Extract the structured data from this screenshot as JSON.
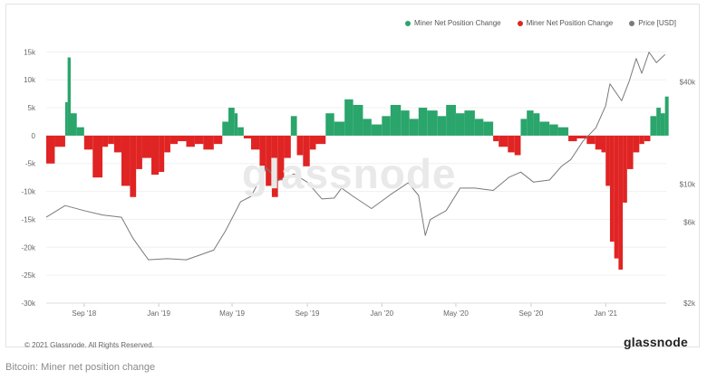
{
  "chart_data": {
    "type": "bar",
    "legend": [
      {
        "label": "Miner Net Position Change",
        "color": "#2aa56b"
      },
      {
        "label": "Miner Net Position Change",
        "color": "#e02424"
      },
      {
        "label": "Price [USD]",
        "color": "#7a7a7a"
      }
    ],
    "legend_placement": "top-right",
    "watermark": "glassnode",
    "x_ticks": [
      "Sep '18",
      "Jan '19",
      "May '19",
      "Sep '19",
      "Jan '20",
      "May '20",
      "Sep '20",
      "Jan '21"
    ],
    "y_left_ticks": [
      "15k",
      "10k",
      "5k",
      "0",
      "-5k",
      "-10k",
      "-15k",
      "-20k",
      "-25k",
      "-30k"
    ],
    "y_left_lim": [
      -30000,
      17000
    ],
    "y_right_ticks": [
      "$40k",
      "$10k",
      "$6k",
      "$2k"
    ],
    "y_right_scale": "log",
    "y_right_lim": [
      2000,
      70000
    ],
    "x_range": [
      "2018-07-01",
      "2021-04-10"
    ],
    "position_change": {
      "x": [
        "2018-07-01",
        "2018-07-15",
        "2018-08-01",
        "2018-08-05",
        "2018-08-10",
        "2018-08-20",
        "2018-09-01",
        "2018-09-15",
        "2018-10-01",
        "2018-10-10",
        "2018-10-20",
        "2018-11-01",
        "2018-11-15",
        "2018-11-25",
        "2018-12-05",
        "2018-12-20",
        "2019-01-01",
        "2019-01-10",
        "2019-01-20",
        "2019-02-01",
        "2019-02-15",
        "2019-03-01",
        "2019-03-15",
        "2019-04-01",
        "2019-04-15",
        "2019-04-25",
        "2019-05-05",
        "2019-05-10",
        "2019-05-20",
        "2019-06-01",
        "2019-06-15",
        "2019-06-25",
        "2019-07-05",
        "2019-07-15",
        "2019-07-25",
        "2019-08-05",
        "2019-08-15",
        "2019-08-25",
        "2019-09-05",
        "2019-09-15",
        "2019-10-01",
        "2019-10-15",
        "2019-11-01",
        "2019-11-15",
        "2019-12-01",
        "2019-12-15",
        "2020-01-01",
        "2020-01-15",
        "2020-02-01",
        "2020-02-15",
        "2020-03-01",
        "2020-03-15",
        "2020-04-01",
        "2020-04-15",
        "2020-05-01",
        "2020-05-15",
        "2020-06-01",
        "2020-06-15",
        "2020-07-01",
        "2020-07-10",
        "2020-07-25",
        "2020-08-05",
        "2020-08-15",
        "2020-08-25",
        "2020-09-05",
        "2020-09-15",
        "2020-10-01",
        "2020-10-15",
        "2020-11-01",
        "2020-11-15",
        "2020-12-01",
        "2020-12-15",
        "2020-12-25",
        "2021-01-01",
        "2021-01-08",
        "2021-01-15",
        "2021-01-22",
        "2021-01-29",
        "2021-02-05",
        "2021-02-15",
        "2021-02-25",
        "2021-03-05",
        "2021-03-15",
        "2021-03-25",
        "2021-04-01",
        "2021-04-08"
      ],
      "y": [
        -5000,
        -2000,
        6000,
        14000,
        4000,
        1500,
        -2500,
        -7500,
        -2000,
        -1500,
        -3000,
        -9000,
        -11000,
        -6000,
        -4000,
        -7000,
        -6500,
        -3000,
        -1500,
        -1000,
        -2000,
        -1500,
        -2500,
        -1500,
        2500,
        5000,
        4000,
        1500,
        -500,
        -2500,
        -6000,
        -9000,
        -11000,
        -8000,
        -4000,
        3500,
        -3500,
        -5500,
        -2500,
        -1500,
        4000,
        2500,
        6500,
        5500,
        3000,
        2000,
        3500,
        5500,
        4500,
        3000,
        5000,
        4500,
        3500,
        5500,
        4000,
        4500,
        3000,
        2500,
        -1000,
        -2000,
        -3000,
        -3500,
        3000,
        4500,
        4000,
        2500,
        2000,
        1500,
        -1000,
        -500,
        -1500,
        -2500,
        -3000,
        -9000,
        -19000,
        -22000,
        -24000,
        -12000,
        -6000,
        -3000,
        -1500,
        -1000,
        3500,
        5000,
        4000,
        7000
      ]
    },
    "price": {
      "x": [
        "2018-07-01",
        "2018-08-01",
        "2018-09-01",
        "2018-10-01",
        "2018-11-01",
        "2018-11-20",
        "2018-12-15",
        "2019-01-15",
        "2019-02-15",
        "2019-03-15",
        "2019-04-01",
        "2019-04-20",
        "2019-05-15",
        "2019-06-01",
        "2019-06-26",
        "2019-07-15",
        "2019-08-10",
        "2019-09-01",
        "2019-09-25",
        "2019-10-15",
        "2019-10-27",
        "2019-11-15",
        "2019-12-15",
        "2020-01-15",
        "2020-02-13",
        "2020-03-01",
        "2020-03-12",
        "2020-03-20",
        "2020-04-15",
        "2020-05-08",
        "2020-06-01",
        "2020-07-01",
        "2020-07-27",
        "2020-08-15",
        "2020-09-05",
        "2020-10-01",
        "2020-10-21",
        "2020-11-05",
        "2020-11-25",
        "2020-12-16",
        "2021-01-01",
        "2021-01-08",
        "2021-01-27",
        "2021-02-08",
        "2021-02-20",
        "2021-03-01",
        "2021-03-13",
        "2021-03-25",
        "2021-04-08"
      ],
      "y": [
        6400,
        7500,
        7000,
        6600,
        6400,
        4800,
        3600,
        3650,
        3600,
        3900,
        4100,
        5300,
        7900,
        8500,
        12500,
        10500,
        11500,
        10300,
        8200,
        8300,
        9500,
        8500,
        7200,
        8700,
        10200,
        8600,
        5000,
        6200,
        7000,
        9500,
        9500,
        9200,
        11000,
        11800,
        10300,
        10600,
        12800,
        14000,
        18000,
        21500,
        29000,
        39000,
        31000,
        40000,
        55000,
        45000,
        60000,
        52000,
        58000
      ]
    }
  },
  "footer": {
    "copyright": "© 2021 Glassnode. All Rights Reserved.",
    "logo": "glassnode"
  },
  "caption": "Bitcoin: Miner net position change"
}
